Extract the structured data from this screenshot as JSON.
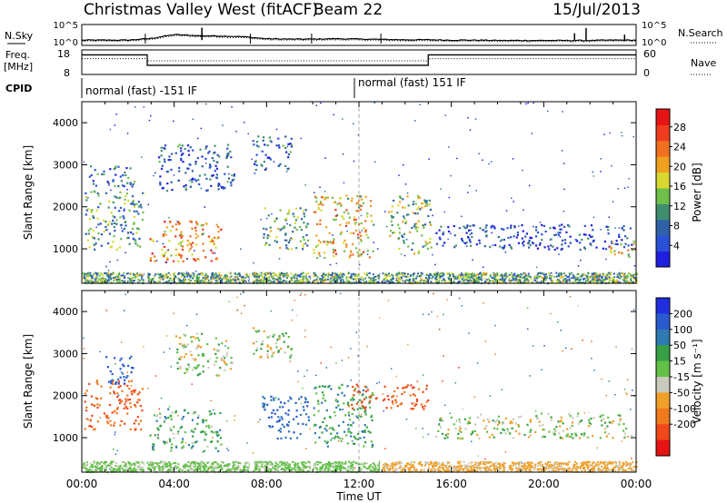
{
  "header": {
    "station": "Christmas Valley West (fitACF)",
    "beam": "Beam 22",
    "date": "15/Jul/2013"
  },
  "left_labels": {
    "nsky": "N.Sky",
    "freq_line1": "Freq.",
    "freq_line2": "[MHz]",
    "cpid": "CPID"
  },
  "right_labels": {
    "nsearch": "N.Search",
    "nave": "Nave"
  },
  "cpid_segments": [
    "normal (fast) -151 IF",
    "normal (fast) 151 IF"
  ],
  "colors": {
    "axis": "#000000",
    "white": "#ffffff"
  },
  "chart_data": [
    {
      "type": "line",
      "name": "noise",
      "left_ticks": [
        "10^5",
        "10^0"
      ],
      "right_ticks": [
        "10^5",
        "10^0"
      ],
      "series": [
        {
          "name": "N.Sky",
          "style": "solid"
        },
        {
          "name": "N.Search",
          "style": "dotted"
        }
      ],
      "x": [
        "00:00",
        "01:00",
        "02:00",
        "03:00",
        "04:00",
        "05:00",
        "06:00",
        "07:00",
        "08:00",
        "09:00",
        "10:00",
        "11:00",
        "12:00",
        "13:00",
        "14:00",
        "15:00",
        "16:00",
        "17:00",
        "18:00",
        "19:00",
        "20:00",
        "21:00",
        "22:00",
        "23:00",
        "24:00"
      ],
      "log10_values": [
        1.0,
        1.0,
        1.0,
        1.5,
        2.6,
        2.3,
        2.2,
        2.0,
        1.4,
        1.3,
        1.3,
        1.4,
        1.3,
        1.2,
        1.1,
        1.1,
        1.0,
        1.0,
        0.9,
        0.9,
        0.9,
        0.9,
        0.9,
        1.0,
        1.0
      ],
      "spikes": [
        {
          "x": "05:12",
          "log10": 4.6
        },
        {
          "x": "21:20",
          "log10": 3.0
        },
        {
          "x": "21:50",
          "log10": 4.5
        },
        {
          "x": "23:30",
          "log10": 2.6
        }
      ]
    },
    {
      "type": "line",
      "name": "frequency-nave",
      "left_ticks": [
        "18",
        "8"
      ],
      "right_ticks": [
        "60",
        "0"
      ],
      "ylim_left": [
        8,
        18
      ],
      "ylim_right": [
        0,
        60
      ],
      "freq_steps": [
        {
          "from": "00:00",
          "to": "02:50",
          "mhz": 16.5
        },
        {
          "from": "02:50",
          "to": "15:00",
          "mhz": 11.5
        },
        {
          "from": "15:00",
          "to": "24:00",
          "mhz": 16.5
        }
      ],
      "nave_steps": [
        {
          "from": "00:00",
          "to": "02:50",
          "nave": 40
        },
        {
          "from": "02:50",
          "to": "15:00",
          "nave": 34
        },
        {
          "from": "15:00",
          "to": "24:00",
          "nave": 40
        }
      ]
    },
    {
      "type": "heatmap",
      "name": "power",
      "ylabel": "Slant Range [km]",
      "yticks": [
        "1000",
        "2000",
        "3000",
        "4000"
      ],
      "ylim": [
        180,
        4500
      ],
      "colorbar_label": "Power [dB]",
      "colorbar_ticks": [
        "4",
        "8",
        "12",
        "16",
        "20",
        "24",
        "28"
      ],
      "colorbar_colors": [
        "#1f1fe0",
        "#2a50d8",
        "#2f62a8",
        "#3f8f6f",
        "#6fc04a",
        "#d8d830",
        "#f0a020",
        "#f07020",
        "#f03c1c",
        "#e61414"
      ],
      "regions": [
        {
          "t0": 0.1,
          "t1": 2.7,
          "r0": 1000,
          "r1": 2400,
          "level": 0.35
        },
        {
          "t0": 0.3,
          "t1": 2.4,
          "r0": 2500,
          "r1": 3000,
          "level": 0.25
        },
        {
          "t0": 2.9,
          "t1": 6.0,
          "r0": 700,
          "r1": 1700,
          "level": 0.7
        },
        {
          "t0": 3.3,
          "t1": 6.6,
          "r0": 2400,
          "r1": 3500,
          "level": 0.2
        },
        {
          "t0": 7.3,
          "t1": 9.1,
          "r0": 2900,
          "r1": 3700,
          "level": 0.25
        },
        {
          "t0": 7.8,
          "t1": 9.8,
          "r0": 1000,
          "r1": 2000,
          "level": 0.4
        },
        {
          "t0": 10.0,
          "t1": 12.6,
          "r0": 800,
          "r1": 2300,
          "level": 0.6
        },
        {
          "t0": 13.2,
          "t1": 15.1,
          "r0": 900,
          "r1": 2300,
          "level": 0.45
        },
        {
          "t0": 15.3,
          "t1": 23.8,
          "r0": 1000,
          "r1": 1600,
          "level": 0.15
        },
        {
          "t0": 22.8,
          "t1": 24.0,
          "r0": 800,
          "r1": 1200,
          "level": 0.55
        }
      ],
      "ground_scatter_band": {
        "r0": 200,
        "r1": 450
      }
    },
    {
      "type": "heatmap",
      "name": "velocity",
      "xlabel": "Time UT",
      "ylabel": "Slant Range [km]",
      "xticks": [
        "00:00",
        "04:00",
        "08:00",
        "12:00",
        "16:00",
        "20:00",
        "00:00"
      ],
      "yticks": [
        "1000",
        "2000",
        "3000",
        "4000"
      ],
      "ylim": [
        180,
        4500
      ],
      "colorbar_label": "Velocity [m s⁻¹]",
      "colorbar_ticks": [
        "200",
        "100",
        "50",
        "15",
        "-15",
        "-50",
        "-100",
        "-200"
      ],
      "colorbar_colors": [
        "#1f2fe0",
        "#2a5ad0",
        "#2f7ab0",
        "#36a046",
        "#62c048",
        "#cacabc",
        "#f0a028",
        "#f07a1c",
        "#f04818",
        "#e61414"
      ],
      "regions": [
        {
          "t0": 0.1,
          "t1": 2.6,
          "r0": 1200,
          "r1": 2400,
          "v": -150
        },
        {
          "t0": 1.0,
          "t1": 2.2,
          "r0": 2300,
          "r1": 3000,
          "v": 180
        },
        {
          "t0": 2.9,
          "t1": 6.0,
          "r0": 700,
          "r1": 1700,
          "v": 40
        },
        {
          "t0": 4.0,
          "t1": 6.5,
          "r0": 2500,
          "r1": 3500,
          "v": 0
        },
        {
          "t0": 7.3,
          "t1": 9.1,
          "r0": 2900,
          "r1": 3700,
          "v": 0
        },
        {
          "t0": 7.8,
          "t1": 9.8,
          "r0": 1000,
          "r1": 2000,
          "v": 160
        },
        {
          "t0": 10.0,
          "t1": 12.6,
          "r0": 800,
          "r1": 2300,
          "v": 60
        },
        {
          "t0": 11.5,
          "t1": 15.0,
          "r0": 1700,
          "r1": 2300,
          "v": -180
        },
        {
          "t0": 15.3,
          "t1": 23.8,
          "r0": 1000,
          "r1": 1600,
          "v": 0
        }
      ],
      "ground_scatter_band": {
        "r0": 200,
        "r1": 450
      }
    }
  ]
}
